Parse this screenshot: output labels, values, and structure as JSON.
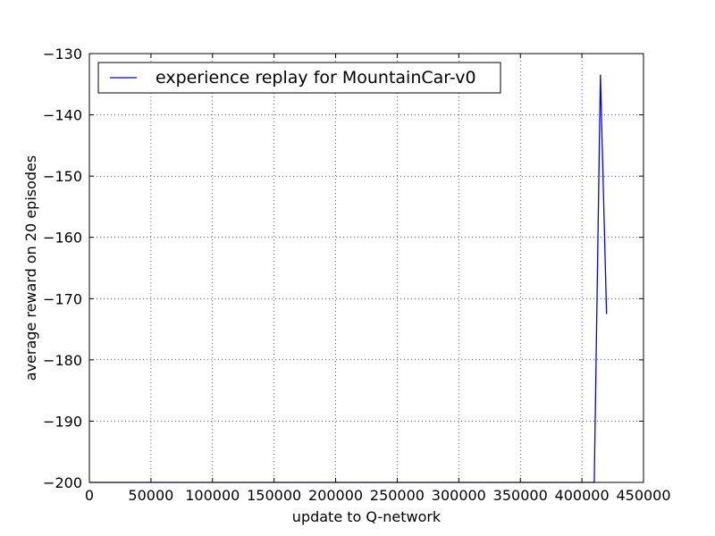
{
  "chart_data": {
    "type": "line",
    "xlabel": "update to Q-network",
    "ylabel": "average reward on 20 episodes",
    "xlim": [
      0,
      450000
    ],
    "ylim": [
      -200,
      -130
    ],
    "xticks": [
      0,
      50000,
      100000,
      150000,
      200000,
      250000,
      300000,
      350000,
      400000,
      450000
    ],
    "yticks": [
      -130,
      -140,
      -150,
      -160,
      -170,
      -180,
      -190,
      -200
    ],
    "xtick_labels": [
      "0",
      "50000",
      "100000",
      "150000",
      "200000",
      "250000",
      "300000",
      "350000",
      "400000",
      "450000"
    ],
    "ytick_labels": [
      "−130",
      "−140",
      "−150",
      "−160",
      "−170",
      "−180",
      "−190",
      "−200"
    ],
    "grid": true,
    "legend_position": "top-left",
    "series": [
      {
        "name": "experience replay for MountainCar-v0",
        "color": "#0000ff",
        "x": [
          0,
          50000,
          100000,
          150000,
          200000,
          250000,
          300000,
          350000,
          400000,
          410000,
          415000,
          420000
        ],
        "y": [
          -200,
          -200,
          -200,
          -200,
          -200,
          -200,
          -200,
          -200,
          -200,
          -200,
          -133.5,
          -172.5
        ]
      }
    ]
  }
}
